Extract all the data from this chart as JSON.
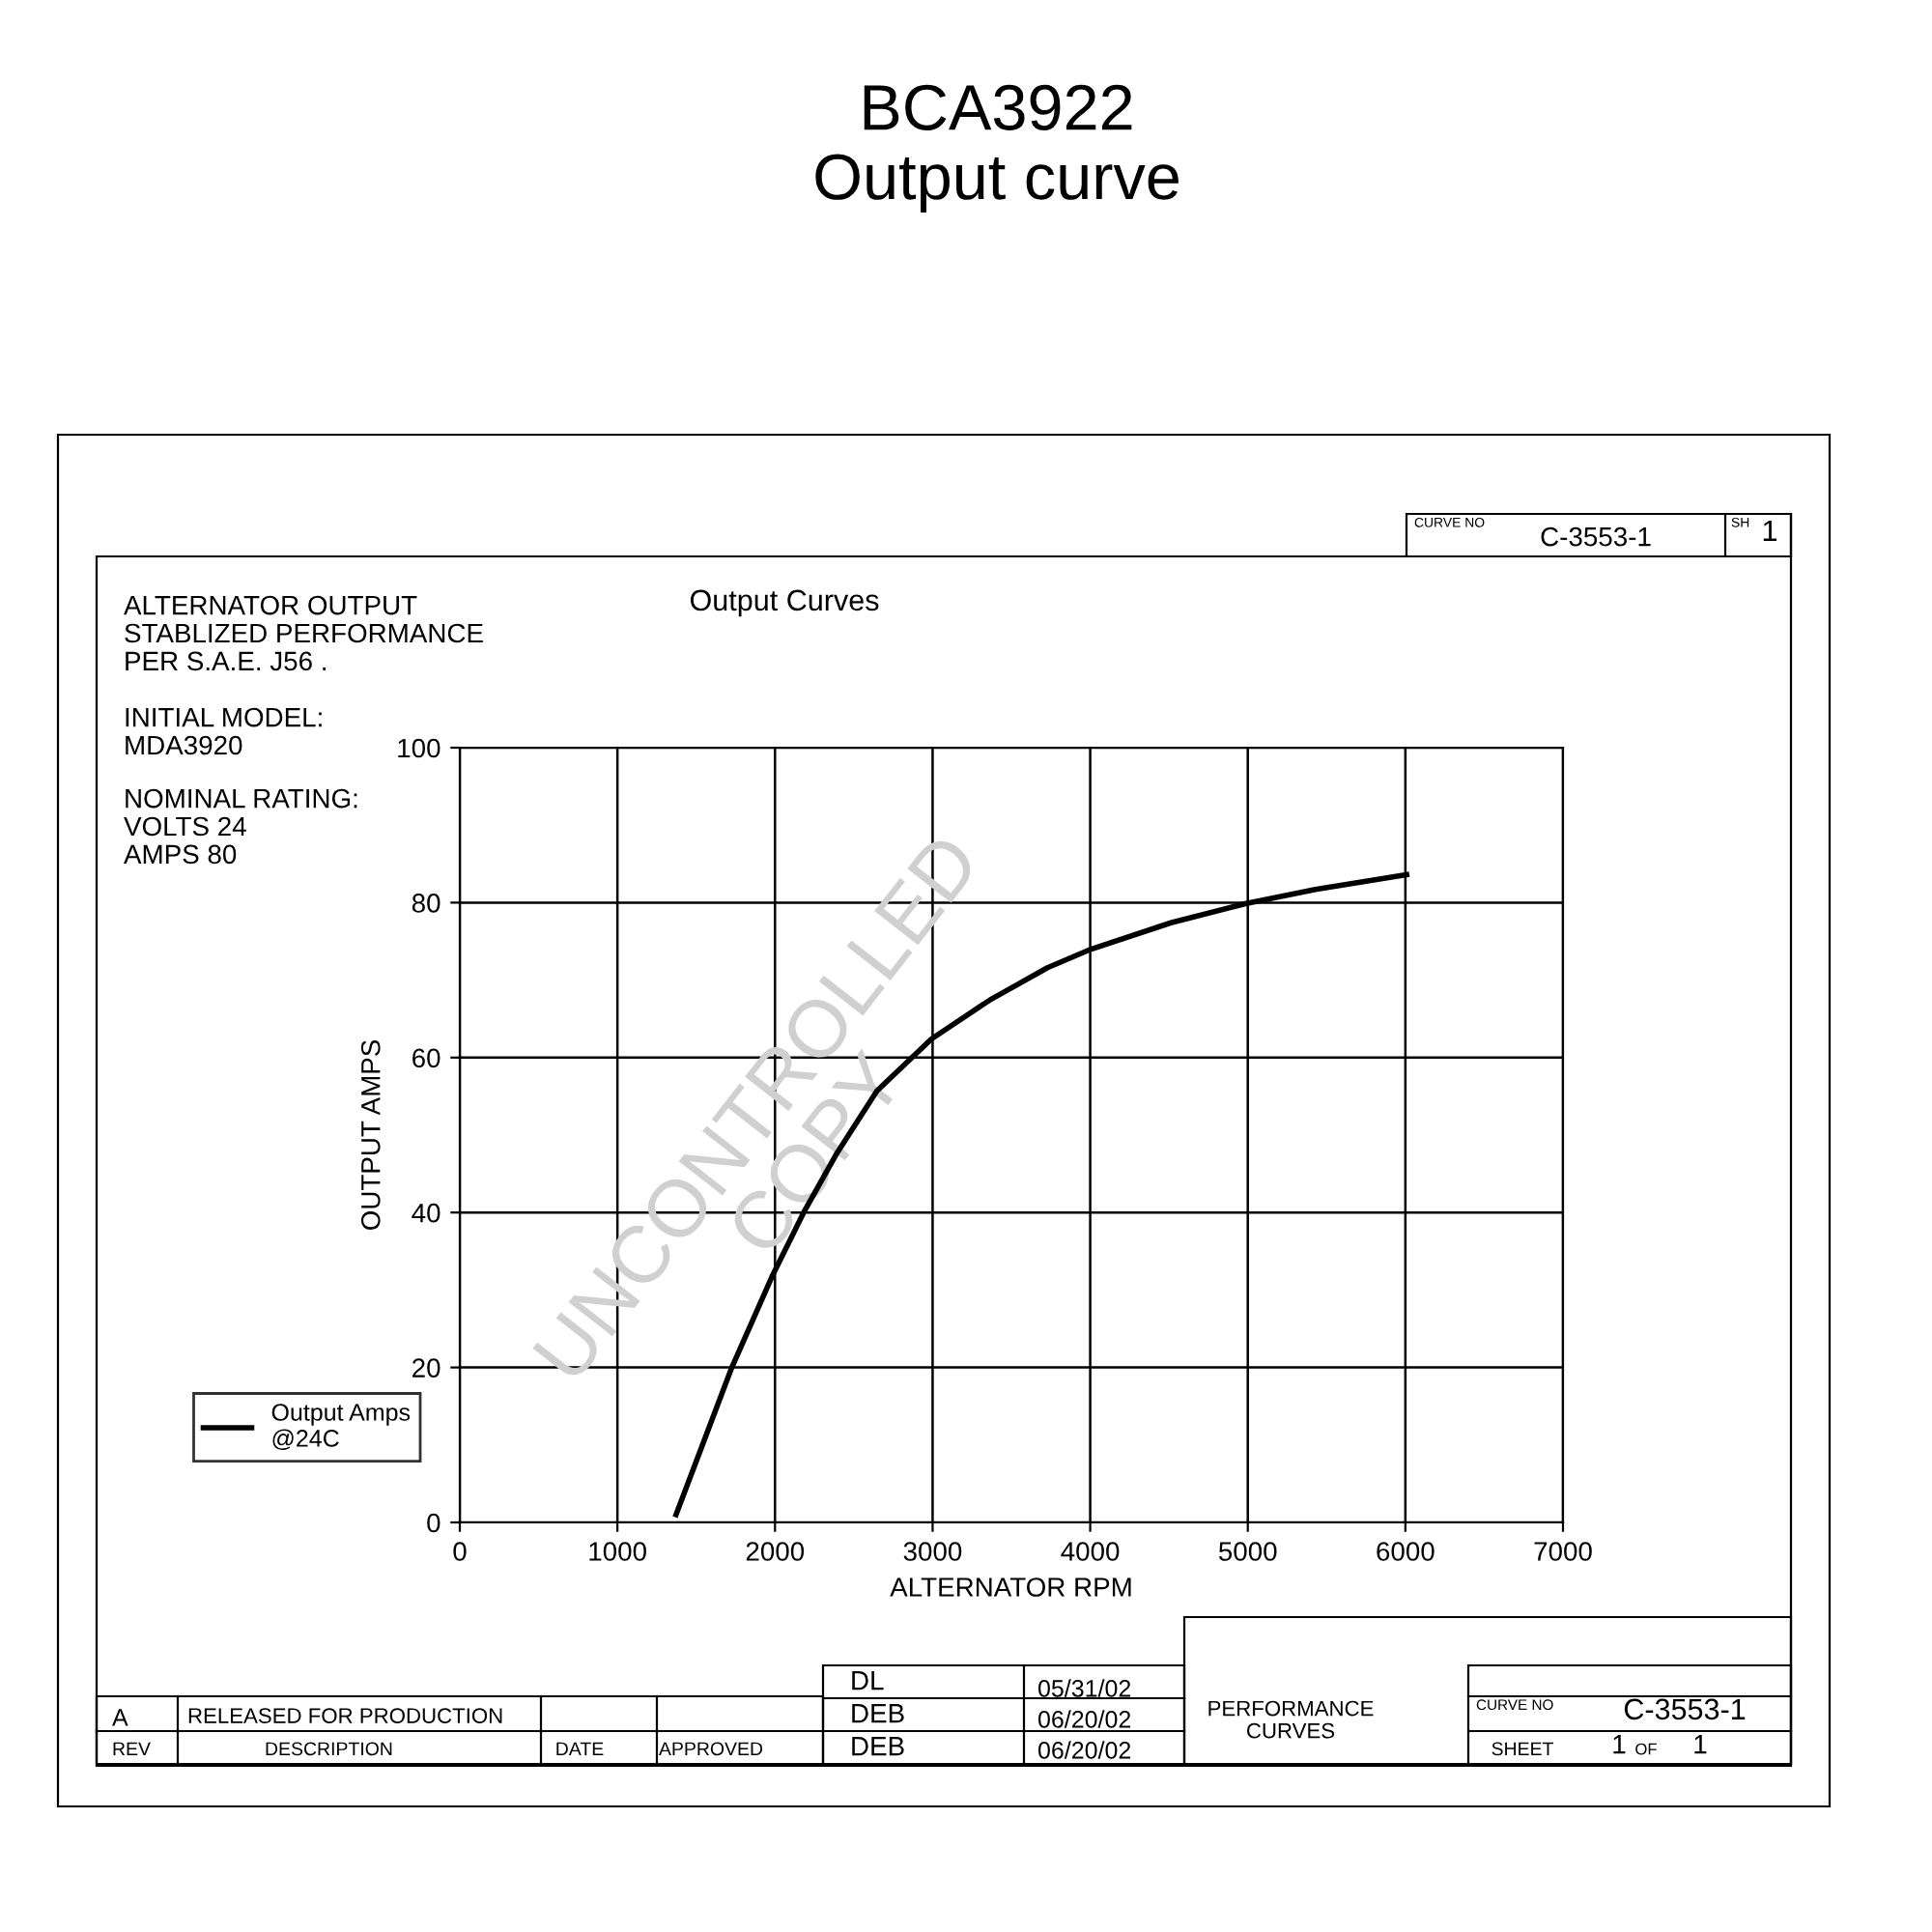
{
  "chart_data": {
    "type": "line",
    "title": "BCA3922\nOutput curve",
    "subtitle": "Output Curves",
    "xlabel": "ALTERNATOR RPM",
    "ylabel": "OUTPUT AMPS",
    "xlim": [
      0,
      7000
    ],
    "xticks": [
      0,
      1000,
      2000,
      3000,
      4000,
      5000,
      6000,
      7000
    ],
    "ylim": [
      0,
      100
    ],
    "yticks": [
      0,
      20,
      40,
      60,
      80,
      100
    ],
    "grid": true,
    "legend": "bottom left",
    "marker": "none",
    "line_style": "solid",
    "series": [
      {
        "name": "Output Amps\n@24C",
        "color": "#000000",
        "x": [
          1372,
          1726,
          1980,
          2187,
          2394,
          2647,
          2993,
          3361,
          3729,
          4006,
          4512,
          4991,
          5429,
          6008
        ],
        "values": [
          1.0,
          20,
          31.7,
          40.2,
          47.7,
          55.7,
          62.4,
          67.4,
          71.6,
          74.0,
          77.4,
          79.9,
          81.7,
          83.6
        ]
      }
    ],
    "annotations": [
      "ALTERNATOR OUTPUT\nSTABLIZED PERFORMANCE\nPER S.A.E. J56 .",
      "INITIAL MODEL:\nMDA3920",
      "NOMINAL RATING:\nVOLTS 24\nAMPS 80",
      "UNCONTROLLED\nCOPY",
      "CURVE NO",
      "C-3553-1",
      "SH",
      "1",
      "A",
      "RELEASED FOR PRODUCTION",
      "REV",
      "DESCRIPTION",
      "DATE",
      "APPROVED",
      "DL",
      "05/31/02",
      "DEB",
      "06/20/02",
      "DEB",
      "06/20/02",
      "PERFORMANCE\nCURVES",
      "CURVE NO",
      "C-3553-1",
      "SHEET",
      "1",
      "OF",
      "1"
    ]
  }
}
